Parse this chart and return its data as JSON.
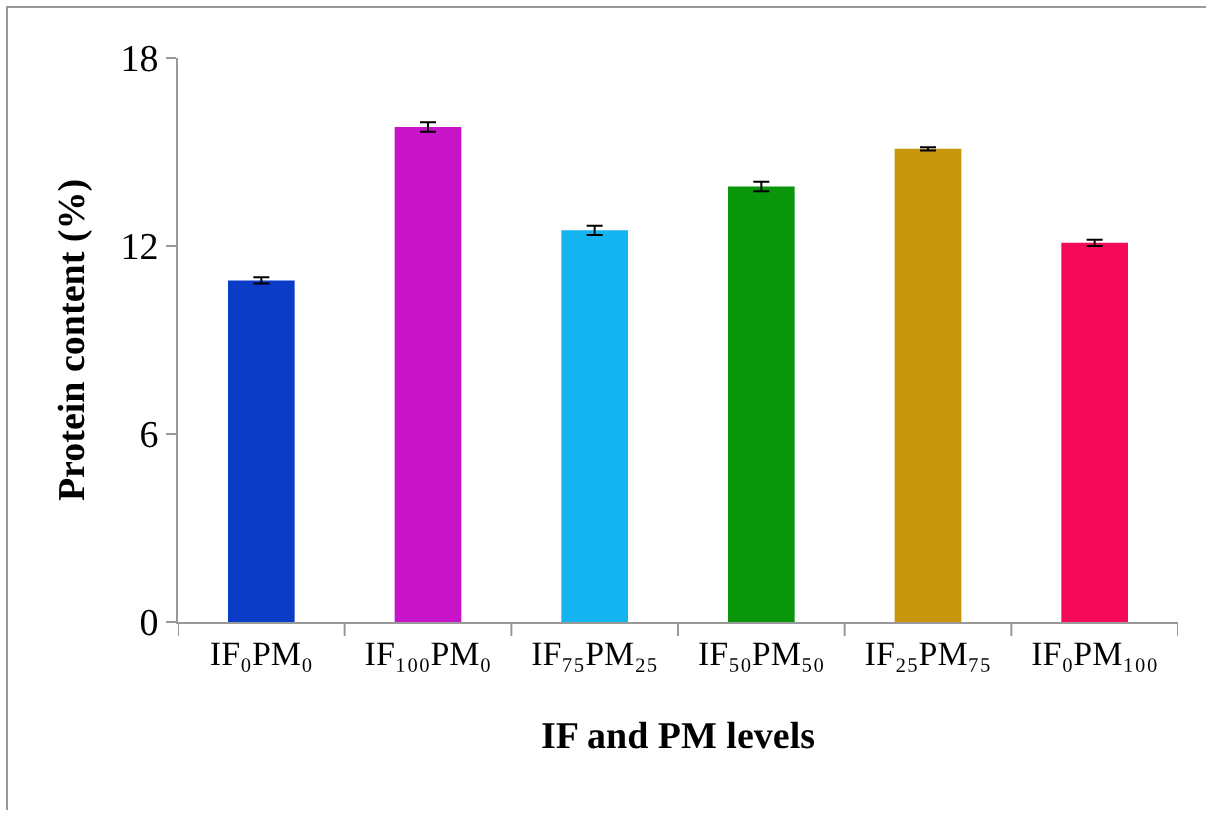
{
  "chart_data": {
    "type": "bar",
    "xlabel": "IF and PM levels",
    "ylabel": "Protein content (%)",
    "categories": [
      "IF₀PM₀",
      "IF₁₀₀PM₀",
      "IF₇₅PM₂₅",
      "IF₅₀PM₅₀",
      "IF₂₅PM₇₅",
      "IF₀PM₁₀₀"
    ],
    "values": [
      10.9,
      15.8,
      12.5,
      13.9,
      15.1,
      12.1
    ],
    "colors": [
      "#0a3cc8",
      "#c814c8",
      "#14b4f0",
      "#0a960a",
      "#c8960a",
      "#f50a5a"
    ],
    "errors": [
      0.1,
      0.15,
      0.15,
      0.15,
      0.05,
      0.1
    ],
    "ylim": [
      0,
      18
    ],
    "yticks": [
      0,
      6,
      12,
      18
    ],
    "grid": false
  }
}
